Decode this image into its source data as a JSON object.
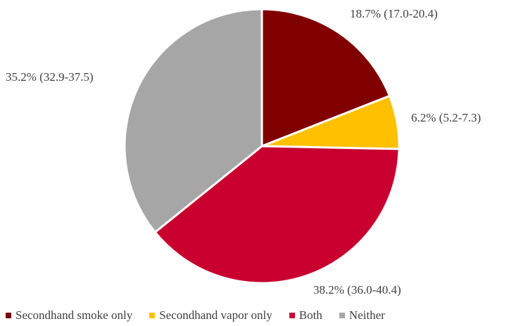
{
  "chart_data": {
    "type": "pie",
    "title": "",
    "series": [
      {
        "name": "Secondhand smoke only",
        "value": 18.7,
        "label": "18.7% (17.0-20.4)",
        "color": "#800000"
      },
      {
        "name": "Secondhand vapor only",
        "value": 6.2,
        "label": "6.2% (5.2-7.3)",
        "color": "#FFC000"
      },
      {
        "name": "Both",
        "value": 38.2,
        "label": "38.2% (36.0-40.4)",
        "color": "#C9002F"
      },
      {
        "name": "Neither",
        "value": 35.2,
        "label": "35.2% (32.9-37.5)",
        "color": "#A6A6A6"
      }
    ],
    "start_angle": "12 o'clock",
    "direction": "clockwise",
    "legend_placement": "bottom"
  }
}
